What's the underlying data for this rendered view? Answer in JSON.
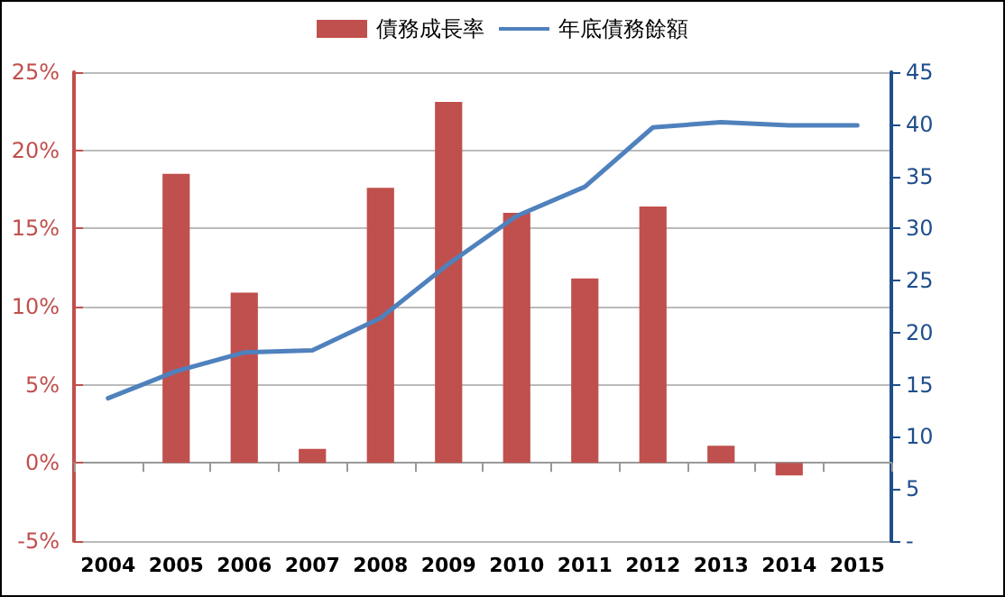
{
  "chart_data": {
    "type": "bar",
    "categories": [
      "2004",
      "2005",
      "2006",
      "2007",
      "2008",
      "2009",
      "2010",
      "2011",
      "2012",
      "2013",
      "2014",
      "2015"
    ],
    "series": [
      {
        "name": "債務成長率",
        "color": "#c0504d",
        "values": [
          null,
          18.5,
          10.9,
          0.9,
          17.6,
          23.1,
          16.0,
          11.8,
          16.4,
          1.1,
          -0.8,
          null
        ]
      },
      {
        "name": "年底債務餘額",
        "type": "line",
        "axis": "y2",
        "color": "#4f81bd",
        "values": [
          13.7,
          16.3,
          18.1,
          18.3,
          21.4,
          26.6,
          31.2,
          34.0,
          39.7,
          40.2,
          39.9,
          39.9
        ]
      }
    ],
    "ylim": [
      -5,
      25
    ],
    "yticks": [
      {
        "value": -5,
        "label": "-5%"
      },
      {
        "value": 0,
        "label": "0%"
      },
      {
        "value": 5,
        "label": "5%"
      },
      {
        "value": 10,
        "label": "10%"
      },
      {
        "value": 15,
        "label": "15%"
      },
      {
        "value": 20,
        "label": "20%"
      },
      {
        "value": 25,
        "label": "25%"
      }
    ],
    "y2lim": [
      0,
      45
    ],
    "y2ticks": [
      {
        "value": 0,
        "label": "-"
      },
      5,
      10,
      15,
      20,
      25,
      30,
      35,
      40,
      45
    ],
    "grid": "y",
    "legend": "top",
    "marker": "none",
    "line_style": "solid"
  }
}
